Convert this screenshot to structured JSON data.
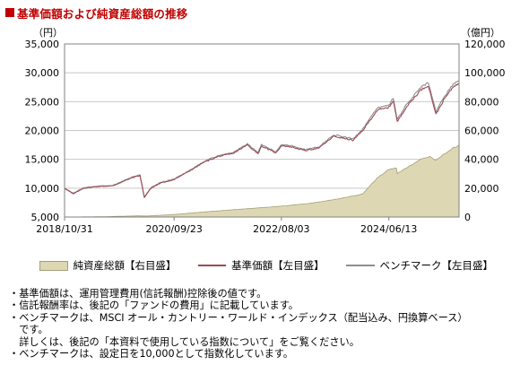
{
  "header": {
    "title": "基準価額および純資産総額の推移"
  },
  "legend": {
    "net_assets": "純資産総額【右目盛】",
    "nav": "基準価額【左目盛】",
    "benchmark": "ベンチマーク【左目盛】"
  },
  "notes": [
    "・基準価額は、運用管理費用(信託報酬)控除後の値です。",
    "・信託報酬率は、後記の「ファンドの費用」に記載しています。",
    "・ベンチマークは、MSCI オール・カントリー・ワールド・インデックス（配当込み、円換算ベース）",
    "　です。",
    "　詳しくは、後記の「本資料で使用している指数について」をご覧ください。",
    "・ベンチマークは、設定日を10,000として指数化しています。"
  ],
  "chart_data": {
    "type": "line",
    "left_axis": {
      "unit": "（円）",
      "range": [
        5000,
        35000
      ],
      "ticks": [
        "35,000",
        "30,000",
        "25,000",
        "20,000",
        "15,000",
        "10,000",
        "5,000"
      ]
    },
    "right_axis": {
      "unit": "（億円）",
      "range": [
        0,
        120000
      ],
      "ticks": [
        "120,000",
        "100,000",
        "80,000",
        "60,000",
        "40,000",
        "20,000",
        "0"
      ]
    },
    "x_axis": {
      "range": [
        "2018-10-31",
        "2025-08-31"
      ],
      "ticks": [
        "2018/10/31",
        "2020/09/23",
        "2022/08/03",
        "2024/06/13"
      ]
    },
    "grid": true,
    "legend_position": "bottom",
    "series": [
      {
        "name": "純資産総額【右目盛】",
        "axis": "right",
        "kind": "area",
        "color": "#ddd8b3",
        "edge_color": "#a39e7a",
        "points": [
          [
            "2018-10-31",
            0
          ],
          [
            "2019-06-30",
            200
          ],
          [
            "2020-01-31",
            800
          ],
          [
            "2020-03-31",
            700
          ],
          [
            "2020-09-30",
            1800
          ],
          [
            "2021-03-31",
            3500
          ],
          [
            "2021-09-30",
            5000
          ],
          [
            "2022-03-31",
            6500
          ],
          [
            "2022-08-03",
            7500
          ],
          [
            "2023-01-31",
            9500
          ],
          [
            "2023-06-30",
            12000
          ],
          [
            "2023-12-31",
            16000
          ],
          [
            "2024-01-31",
            20000
          ],
          [
            "2024-03-31",
            27000
          ],
          [
            "2024-06-13",
            33000
          ],
          [
            "2024-07-31",
            34000
          ],
          [
            "2024-08-05",
            30000
          ],
          [
            "2024-09-30",
            34000
          ],
          [
            "2024-12-31",
            40000
          ],
          [
            "2025-02-28",
            42000
          ],
          [
            "2025-04-07",
            39000
          ],
          [
            "2025-05-31",
            44000
          ],
          [
            "2025-07-31",
            48000
          ],
          [
            "2025-08-31",
            50000
          ]
        ]
      },
      {
        "name": "基準価額【左目盛】",
        "axis": "left",
        "kind": "line",
        "color": "#9b4b55",
        "points": [
          [
            "2018-10-31",
            10000
          ],
          [
            "2018-12-25",
            9000
          ],
          [
            "2019-02-28",
            10000
          ],
          [
            "2019-05-31",
            10300
          ],
          [
            "2019-08-31",
            10400
          ],
          [
            "2019-12-31",
            11800
          ],
          [
            "2020-02-20",
            12200
          ],
          [
            "2020-03-19",
            8400
          ],
          [
            "2020-04-30",
            10000
          ],
          [
            "2020-06-30",
            10900
          ],
          [
            "2020-09-23",
            11500
          ],
          [
            "2020-12-31",
            13000
          ],
          [
            "2021-03-31",
            14500
          ],
          [
            "2021-06-30",
            15500
          ],
          [
            "2021-09-30",
            16000
          ],
          [
            "2021-12-31",
            17500
          ],
          [
            "2022-03-08",
            16000
          ],
          [
            "2022-03-31",
            17300
          ],
          [
            "2022-06-30",
            16100
          ],
          [
            "2022-08-03",
            17400
          ],
          [
            "2022-10-14",
            17100
          ],
          [
            "2022-12-31",
            16500
          ],
          [
            "2023-03-31",
            17000
          ],
          [
            "2023-06-30",
            19000
          ],
          [
            "2023-10-31",
            18300
          ],
          [
            "2023-12-31",
            20000
          ],
          [
            "2024-03-31",
            23500
          ],
          [
            "2024-06-13",
            24000
          ],
          [
            "2024-07-11",
            25200
          ],
          [
            "2024-08-05",
            21500
          ],
          [
            "2024-09-30",
            24000
          ],
          [
            "2024-12-31",
            27000
          ],
          [
            "2025-02-18",
            27800
          ],
          [
            "2025-04-07",
            22800
          ],
          [
            "2025-05-31",
            25500
          ],
          [
            "2025-07-31",
            27800
          ],
          [
            "2025-08-31",
            28000
          ]
        ]
      },
      {
        "name": "ベンチマーク【左目盛】",
        "axis": "left",
        "kind": "line",
        "color": "#8e8e8e",
        "points": [
          [
            "2018-10-31",
            10000
          ],
          [
            "2018-12-25",
            9100
          ],
          [
            "2019-02-28",
            10050
          ],
          [
            "2019-05-31",
            10350
          ],
          [
            "2019-08-31",
            10450
          ],
          [
            "2019-12-31",
            11900
          ],
          [
            "2020-02-20",
            12300
          ],
          [
            "2020-03-19",
            8500
          ],
          [
            "2020-04-30",
            10100
          ],
          [
            "2020-06-30",
            11000
          ],
          [
            "2020-09-23",
            11600
          ],
          [
            "2020-12-31",
            13100
          ],
          [
            "2021-03-31",
            14650
          ],
          [
            "2021-06-30",
            15650
          ],
          [
            "2021-09-30",
            16150
          ],
          [
            "2021-12-31",
            17700
          ],
          [
            "2022-03-08",
            16150
          ],
          [
            "2022-03-31",
            17500
          ],
          [
            "2022-06-30",
            16300
          ],
          [
            "2022-08-03",
            17600
          ],
          [
            "2022-10-14",
            17300
          ],
          [
            "2022-12-31",
            16700
          ],
          [
            "2023-03-31",
            17200
          ],
          [
            "2023-06-30",
            19250
          ],
          [
            "2023-10-31",
            18550
          ],
          [
            "2023-12-31",
            20300
          ],
          [
            "2024-03-31",
            23850
          ],
          [
            "2024-06-13",
            24400
          ],
          [
            "2024-07-11",
            25600
          ],
          [
            "2024-08-05",
            21900
          ],
          [
            "2024-09-30",
            24400
          ],
          [
            "2024-12-31",
            27450
          ],
          [
            "2025-02-18",
            28250
          ],
          [
            "2025-04-07",
            23200
          ],
          [
            "2025-05-31",
            25950
          ],
          [
            "2025-07-31",
            28250
          ],
          [
            "2025-08-31",
            28500
          ]
        ]
      }
    ]
  }
}
